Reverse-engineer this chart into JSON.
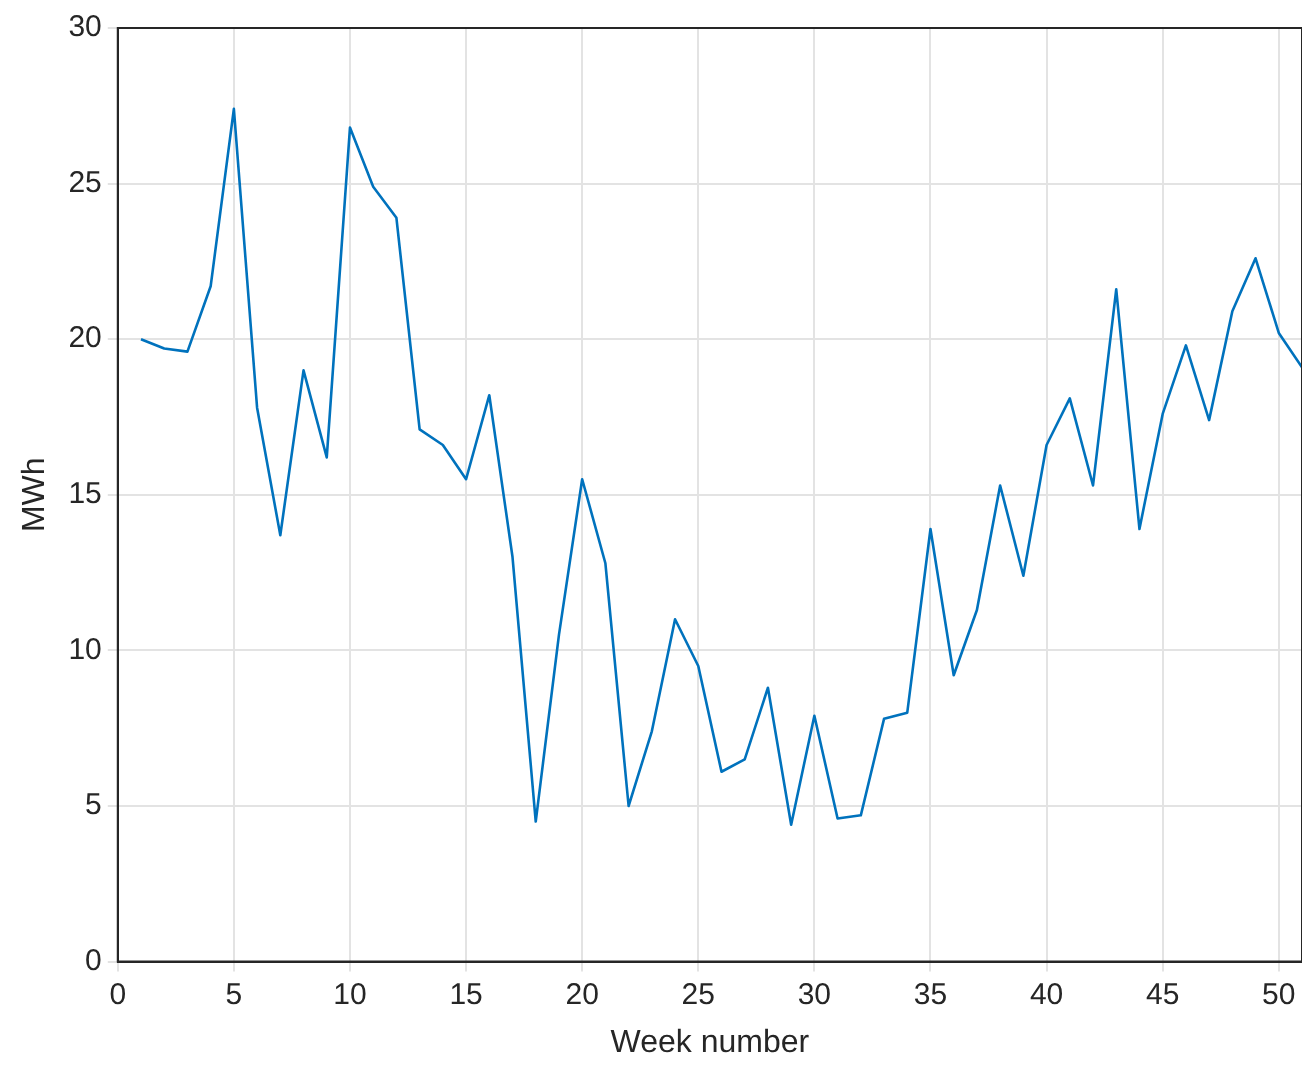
{
  "chart_data": {
    "type": "line",
    "xlabel": "Week number",
    "ylabel": "MWh",
    "x": [
      1,
      2,
      3,
      4,
      5,
      6,
      7,
      8,
      9,
      10,
      11,
      12,
      13,
      14,
      15,
      16,
      17,
      18,
      19,
      20,
      21,
      22,
      23,
      24,
      25,
      26,
      27,
      28,
      29,
      30,
      31,
      32,
      33,
      34,
      35,
      36,
      37,
      38,
      39,
      40,
      41,
      42,
      43,
      44,
      45,
      46,
      47,
      48,
      49,
      50,
      51
    ],
    "series": [
      {
        "color": "#0072bd",
        "values": [
          20.0,
          19.7,
          19.6,
          21.7,
          27.4,
          17.8,
          13.7,
          19.0,
          16.2,
          26.8,
          24.9,
          23.9,
          17.1,
          16.6,
          15.5,
          18.2,
          13.0,
          4.5,
          10.5,
          15.5,
          12.8,
          5.0,
          7.4,
          11.0,
          9.5,
          6.1,
          6.5,
          8.8,
          4.4,
          7.9,
          4.6,
          4.7,
          7.8,
          8.0,
          13.9,
          9.2,
          11.3,
          15.3,
          12.4,
          16.6,
          18.1,
          15.3,
          21.6,
          13.9,
          17.6,
          19.8,
          17.4,
          20.9,
          22.6,
          20.2,
          19.1
        ]
      }
    ],
    "xlim": [
      0,
      51
    ],
    "xticks": [
      0,
      5,
      10,
      15,
      20,
      25,
      30,
      35,
      40,
      45,
      50
    ],
    "ylim": [
      0,
      30
    ],
    "yticks": [
      0,
      5,
      10,
      15,
      20,
      25,
      30
    ],
    "grid": true,
    "legend": false,
    "marker": "none",
    "line_style": "solid"
  }
}
